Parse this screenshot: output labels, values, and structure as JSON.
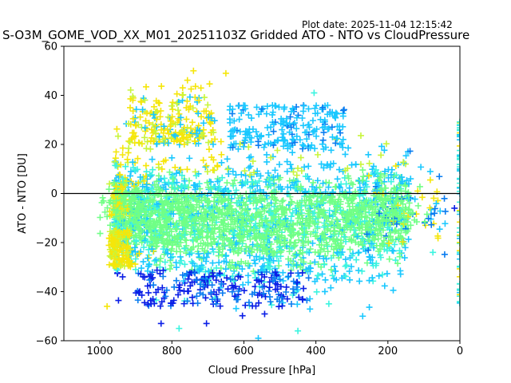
{
  "plot_date": "Plot date: 2025-11-04 12:15:42",
  "chart_data": {
    "type": "scatter",
    "title": "S-O3M_GOME_VOD_XX_M01_20251103Z Gridded ATO - NTO vs CloudPressure",
    "xlabel": "Cloud Pressure [hPa]",
    "ylabel": "ATO - NTO [DU]",
    "xlim": [
      1100,
      0
    ],
    "ylim": [
      -60,
      60
    ],
    "x_ticks": [
      1000,
      800,
      600,
      400,
      200,
      0
    ],
    "y_ticks": [
      -60,
      -40,
      -20,
      0,
      20,
      40,
      60
    ],
    "x_axis_reversed": true,
    "reference_line_y": 0,
    "marker": "+",
    "grid": false,
    "colors": {
      "dominant": "#70ff86",
      "cyan": "#1ac8ff",
      "light_cyan": "#3cf4e0",
      "yellow": "#f5e60a",
      "yellow_green": "#c8f53c",
      "blue": "#0a1ee6",
      "mid_blue": "#0a7cf0"
    },
    "series_summary": {
      "dense_core_points": [
        {
          "x": 960,
          "y": -5
        },
        {
          "x": 900,
          "y": -8
        },
        {
          "x": 800,
          "y": -10
        },
        {
          "x": 700,
          "y": -12
        },
        {
          "x": 600,
          "y": -13
        },
        {
          "x": 500,
          "y": -10
        },
        {
          "x": 400,
          "y": -8
        },
        {
          "x": 300,
          "y": -6
        },
        {
          "x": 220,
          "y": -5
        },
        {
          "x": 150,
          "y": -5
        }
      ],
      "outliers": [
        {
          "x": 980,
          "y": -46
        },
        {
          "x": 830,
          "y": -53
        },
        {
          "x": 780,
          "y": -55
        },
        {
          "x": 740,
          "y": 50
        },
        {
          "x": 650,
          "y": 49
        },
        {
          "x": 560,
          "y": -59
        },
        {
          "x": 450,
          "y": -56
        },
        {
          "x": 405,
          "y": 41
        },
        {
          "x": 270,
          "y": -50
        },
        {
          "x": 75,
          "y": -24
        },
        {
          "x": 15,
          "y": -6
        },
        {
          "x": 0,
          "y": 28
        }
      ]
    }
  }
}
